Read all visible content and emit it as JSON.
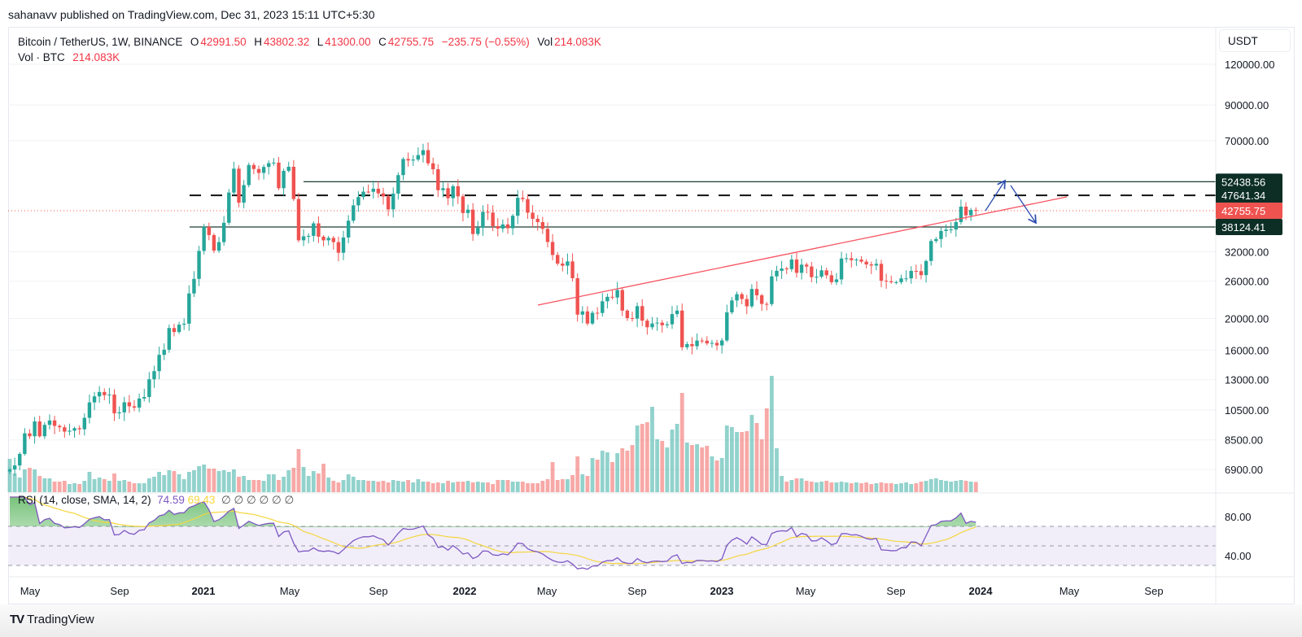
{
  "publish_line": "sahanavv published on TradingView.com, Dec 31, 2023 15:11 UTC+5:30",
  "legend": {
    "symbol": "Bitcoin / TetherUS, 1W, BINANCE",
    "o_label": "O",
    "o": "42991.50",
    "h_label": "H",
    "h": "43802.32",
    "l_label": "L",
    "l": "41300.00",
    "c_label": "C",
    "c": "42755.75",
    "change": "−235.75 (−0.55%)",
    "vol_label": "Vol",
    "vol": "214.083K",
    "vol_series": "Vol · BTC",
    "vol_series_value": "214.083K"
  },
  "rsi_legend": {
    "label": "RSI (14, close, SMA, 14, 2)",
    "rsi": "74.59",
    "sma": "69.43",
    "empty": "∅ ∅ ∅ ∅ ∅ ∅"
  },
  "currency": "USDT",
  "footer_logo": "TradingView",
  "colors": {
    "up": "#26a69a",
    "down": "#ef5350",
    "level_line": "#1e3d33",
    "level_label_bg": "#0c2e25",
    "trendline": "#f7525f",
    "arrow": "#2a4ab0",
    "rsi": "#7e57c2",
    "rsi_sma": "#f5d63d"
  },
  "chart_data": {
    "type": "candlestick",
    "interval": "1W",
    "x_start": "2020-04-06",
    "y_scale": "log",
    "first_open": 6800,
    "close": [
      6900,
      7100,
      7700,
      8900,
      8720,
      9680,
      8720,
      9450,
      9750,
      9380,
      9290,
      9010,
      9070,
      9230,
      9160,
      9930,
      11070,
      11550,
      11910,
      11650,
      11700,
      10250,
      10320,
      11080,
      10770,
      10670,
      11380,
      11500,
      13030,
      13800,
      15480,
      16050,
      18700,
      18180,
      19150,
      19280,
      23860,
      26440,
      32200,
      38150,
      36000,
      32260,
      34260,
      39260,
      48580,
      57500,
      45240,
      51210,
      59010,
      57350,
      55800,
      58200,
      59770,
      60000,
      50100,
      56600,
      58260,
      46430,
      34700,
      35680,
      35800,
      39100,
      35600,
      34700,
      35290,
      34260,
      31790,
      35400,
      39850,
      44400,
      47080,
      48900,
      48850,
      49920,
      48310,
      47260,
      43160,
      48230,
      54950,
      61550,
      60900,
      61300,
      63280,
      65500,
      59700,
      57270,
      49400,
      50100,
      46680,
      50800,
      47300,
      42060,
      43070,
      36280,
      37920,
      42410,
      42200,
      38350,
      37700,
      38810,
      37780,
      41260,
      46830,
      46400,
      42160,
      40380,
      39450,
      37630,
      34300,
      31300,
      29450,
      29020,
      29900,
      26570,
      20550,
      21030,
      19300,
      20820,
      20790,
      22580,
      23300,
      23180,
      24440,
      21140,
      20050,
      19990,
      21820,
      19700,
      18800,
      19310,
      19420,
      19070,
      19200,
      20630,
      21150,
      16330,
      16700,
      16450,
      17120,
      17100,
      16780,
      16840,
      16540,
      17130,
      20880,
      22710,
      23740,
      22940,
      21790,
      24630,
      23550,
      22160,
      22140,
      26910,
      27990,
      28450,
      28320,
      30300,
      27590,
      29230,
      28850,
      26770,
      26850,
      28080,
      27120,
      25840,
      26340,
      30530,
      30580,
      30170,
      30290,
      29860,
      29280,
      29050,
      29400,
      26090,
      26000,
      25820,
      25830,
      26530,
      26530,
      27970,
      27920,
      27150,
      29990,
      34530,
      35010,
      37060,
      37420,
      37450,
      39460,
      43990,
      41370,
      42990,
      42755.75
    ],
    "last_candle": {
      "open": 42991.5,
      "high": 43802.32,
      "low": 41300.0,
      "close": 42755.75
    },
    "volume_k": [
      697,
      391,
      306,
      476,
      510,
      476,
      340,
      289,
      289,
      221,
      221,
      238,
      170,
      187,
      170,
      238,
      425,
      272,
      306,
      272,
      238,
      391,
      238,
      255,
      221,
      187,
      187,
      187,
      289,
      323,
      425,
      357,
      459,
      442,
      374,
      272,
      425,
      459,
      544,
      578,
      493,
      493,
      442,
      459,
      425,
      476,
      323,
      340,
      255,
      255,
      255,
      238,
      374,
      374,
      255,
      323,
      459,
      510,
      901,
      527,
      340,
      442,
      391,
      595,
      306,
      238,
      204,
      255,
      374,
      323,
      255,
      255,
      238,
      238,
      221,
      238,
      204,
      255,
      238,
      221,
      255,
      204,
      272,
      221,
      221,
      187,
      204,
      187,
      238,
      204,
      221,
      221,
      238,
      204,
      221,
      204,
      204,
      170,
      255,
      255,
      255,
      221,
      221,
      221,
      187,
      187,
      187,
      238,
      272,
      629,
      255,
      272,
      272,
      357,
      748,
      374,
      340,
      714,
      680,
      867,
      833,
      629,
      816,
      918,
      867,
      986,
      1394,
      1428,
      1462,
      1785,
      1105,
      1071,
      935,
      1309,
      1428,
      2074,
      1037,
      986,
      1003,
      935,
      969,
      748,
      663,
      714,
      1394,
      1360,
      1258,
      1258,
      1275,
      1615,
      1445,
      1105,
      1751,
      2431,
      918,
      340,
      221,
      255,
      289,
      289,
      238,
      221,
      204,
      221,
      238,
      204,
      204,
      221,
      204,
      187,
      204,
      187,
      204,
      170,
      187,
      204,
      187,
      187,
      170,
      187,
      204,
      170,
      187,
      221,
      238,
      272,
      289,
      255,
      238,
      221,
      238,
      255,
      238,
      221,
      214.083
    ],
    "price_ticks": [
      "120000.00",
      "90000.00",
      "70000.00",
      "32000.00",
      "26000.00",
      "20000.00",
      "16000.00",
      "13000.00",
      "10500.00",
      "8500.00",
      "6900.00"
    ],
    "levels": [
      {
        "price": 52438.56,
        "label": "52438.56",
        "style": "solid"
      },
      {
        "price": 47641.34,
        "label": "47641.34",
        "style": "dashed"
      },
      {
        "price": 38124.41,
        "label": "38124.41",
        "style": "solid"
      }
    ],
    "last_price_label": "42755.75",
    "time_ticks": [
      {
        "label": "May",
        "bold": false
      },
      {
        "label": "Sep",
        "bold": false
      },
      {
        "label": "2021",
        "bold": true
      },
      {
        "label": "May",
        "bold": false
      },
      {
        "label": "Sep",
        "bold": false
      },
      {
        "label": "2022",
        "bold": true
      },
      {
        "label": "May",
        "bold": false
      },
      {
        "label": "Sep",
        "bold": false
      },
      {
        "label": "2023",
        "bold": true
      },
      {
        "label": "May",
        "bold": false
      },
      {
        "label": "Sep",
        "bold": false
      },
      {
        "label": "2024",
        "bold": true
      },
      {
        "label": "May",
        "bold": false
      },
      {
        "label": "Sep",
        "bold": false
      }
    ],
    "rsi": {
      "length": 14,
      "sma_length": 14,
      "ticks": [
        "80.00",
        "40.00"
      ],
      "bands": [
        70,
        50,
        30
      ]
    }
  }
}
